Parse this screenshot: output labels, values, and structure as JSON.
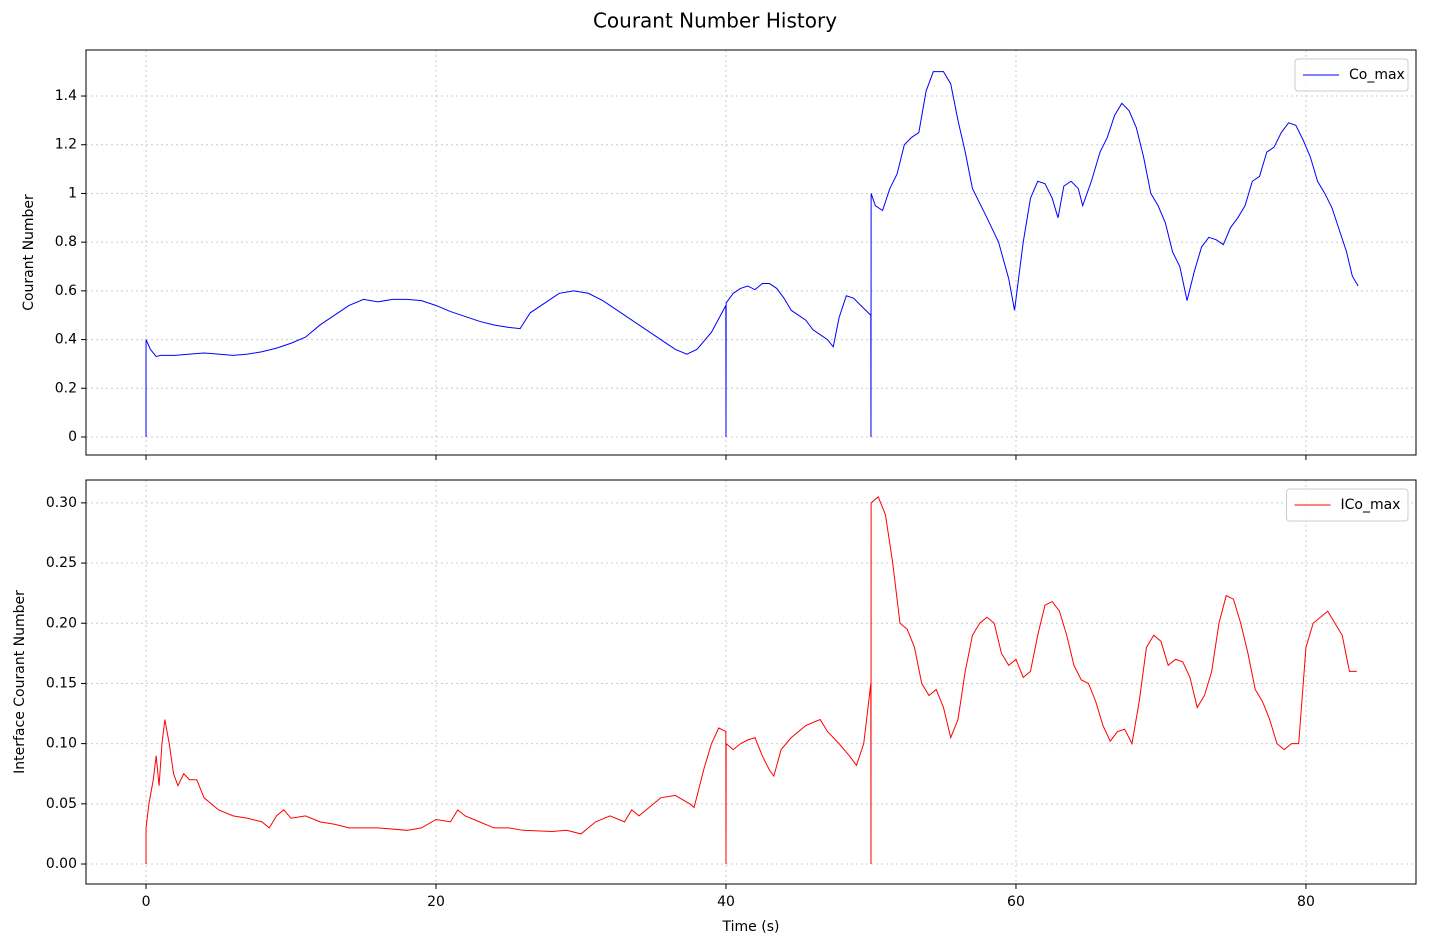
{
  "title": "Courant Number History",
  "chart_data": [
    {
      "type": "line",
      "ylabel": "Courant Number",
      "grid": true,
      "legend": "upper right",
      "xlim": [
        -4.14,
        87.59
      ],
      "xticks": [
        0,
        20,
        40,
        60,
        80
      ],
      "ylim": [
        -0.074,
        1.589
      ],
      "yticks": [
        0.0,
        0.2,
        0.4,
        0.6,
        0.8,
        1.0,
        1.2,
        1.4
      ],
      "x": [
        0,
        0,
        0.3,
        0.7,
        1,
        2,
        3,
        4,
        5,
        6,
        7,
        8,
        9,
        10,
        11,
        12,
        13,
        14,
        15,
        16,
        17,
        18,
        19,
        20,
        21,
        22,
        23,
        24,
        25,
        25.8,
        26.5,
        27.5,
        28.5,
        29.5,
        30.5,
        31.5,
        32.5,
        33.5,
        34.5,
        35.5,
        36.5,
        37.3,
        38,
        39,
        39.99,
        40,
        40.01,
        40.5,
        41,
        41.5,
        42,
        42.5,
        43,
        43.5,
        44,
        44.5,
        45.5,
        46,
        46.5,
        47,
        47.4,
        47.8,
        48.3,
        48.8,
        49.3,
        49.99,
        50,
        50.01,
        50.3,
        50.8,
        51.3,
        51.8,
        52.3,
        52.8,
        53.3,
        53.8,
        54.3,
        55,
        55.5,
        56,
        56.5,
        57,
        58,
        58.8,
        59.5,
        59.9,
        60.5,
        61,
        61.5,
        62,
        62.5,
        62.9,
        63.3,
        63.8,
        64.3,
        64.6,
        65.2,
        65.8,
        66.3,
        66.8,
        67.3,
        67.8,
        68.3,
        68.8,
        69.3,
        69.8,
        70.3,
        70.8,
        71.3,
        71.8,
        72.3,
        72.8,
        73.3,
        73.8,
        74.3,
        74.8,
        75.3,
        75.8,
        76.3,
        76.8,
        77.3,
        77.8,
        78.3,
        78.8,
        79.3,
        79.8,
        80.3,
        80.8,
        81.3,
        81.8,
        82.3,
        82.8,
        83.2,
        83.6
      ],
      "series": [
        {
          "name": "Co_max",
          "color": "#0000ff",
          "values": [
            0,
            0.4,
            0.36,
            0.33,
            0.335,
            0.335,
            0.34,
            0.345,
            0.34,
            0.335,
            0.34,
            0.35,
            0.365,
            0.385,
            0.41,
            0.46,
            0.5,
            0.54,
            0.565,
            0.555,
            0.565,
            0.565,
            0.56,
            0.54,
            0.515,
            0.495,
            0.475,
            0.46,
            0.45,
            0.445,
            0.51,
            0.55,
            0.59,
            0.6,
            0.59,
            0.56,
            0.52,
            0.48,
            0.44,
            0.4,
            0.36,
            0.34,
            0.36,
            0.43,
            0.54,
            0.0,
            0.55,
            0.59,
            0.61,
            0.62,
            0.605,
            0.63,
            0.63,
            0.61,
            0.57,
            0.52,
            0.48,
            0.44,
            0.42,
            0.4,
            0.37,
            0.49,
            0.58,
            0.57,
            0.54,
            0.5,
            0.0,
            1.0,
            0.95,
            0.93,
            1.02,
            1.08,
            1.2,
            1.23,
            1.25,
            1.42,
            1.5,
            1.5,
            1.45,
            1.3,
            1.17,
            1.02,
            0.9,
            0.8,
            0.65,
            0.52,
            0.8,
            0.98,
            1.05,
            1.04,
            0.98,
            0.9,
            1.03,
            1.05,
            1.02,
            0.95,
            1.05,
            1.17,
            1.23,
            1.32,
            1.37,
            1.34,
            1.27,
            1.15,
            1.0,
            0.95,
            0.88,
            0.76,
            0.7,
            0.56,
            0.68,
            0.78,
            0.82,
            0.81,
            0.79,
            0.86,
            0.9,
            0.95,
            1.05,
            1.07,
            1.17,
            1.19,
            1.25,
            1.29,
            1.28,
            1.22,
            1.15,
            1.05,
            1.0,
            0.94,
            0.85,
            0.76,
            0.66,
            0.62
          ]
        }
      ]
    },
    {
      "type": "line",
      "xlabel": "Time (s)",
      "ylabel": "Interface Courant Number",
      "grid": true,
      "legend": "upper right",
      "xlim": [
        -4.14,
        87.59
      ],
      "xticks": [
        0,
        20,
        40,
        60,
        80
      ],
      "ylim": [
        -0.0166,
        0.319
      ],
      "yticks": [
        {
          "value": 0,
          "label": "0.00"
        },
        0.05,
        {
          "value": 0.1,
          "label": "0.10"
        },
        0.15,
        {
          "value": 0.2,
          "label": "0.20"
        },
        0.25,
        {
          "value": 0.3,
          "label": "0.30"
        }
      ],
      "x": [
        0,
        0,
        0.2,
        0.5,
        0.7,
        0.9,
        1.1,
        1.3,
        1.6,
        1.9,
        2.2,
        2.6,
        3,
        3.5,
        4,
        5,
        6,
        7,
        8,
        8.5,
        9,
        9.5,
        10,
        11,
        12,
        13,
        14,
        16,
        18,
        19,
        20,
        21,
        21.5,
        22,
        23,
        24,
        25,
        26,
        28,
        29,
        30,
        31,
        32,
        33,
        33.5,
        34,
        34.5,
        35.5,
        36.5,
        37.5,
        37.8,
        38.5,
        39,
        39.5,
        39.99,
        40,
        40.01,
        40.5,
        41,
        41.5,
        42,
        42.5,
        43,
        43.3,
        43.8,
        44.5,
        45.5,
        46.5,
        47,
        47.8,
        48.5,
        49,
        49.5,
        49.99,
        50,
        50.01,
        50.5,
        51,
        51.5,
        52,
        52.5,
        53,
        53.5,
        54,
        54.5,
        55,
        55.5,
        56,
        56.5,
        57,
        57.5,
        58,
        58.5,
        59,
        59.5,
        60,
        60.5,
        61,
        61.5,
        62,
        62.5,
        63,
        63.5,
        64,
        64.5,
        65,
        65.5,
        66,
        66.5,
        67,
        67.5,
        68,
        68.5,
        69,
        69.5,
        70,
        70.5,
        71,
        71.5,
        72,
        72.5,
        73,
        73.5,
        74,
        74.5,
        75,
        75.5,
        76,
        76.5,
        77,
        77.5,
        78,
        78.5,
        79,
        79.5,
        80,
        80.5,
        81,
        81.5,
        82,
        82.5,
        83,
        83.5
      ],
      "series": [
        {
          "name": "ICo_max",
          "color": "#ff0000",
          "values": [
            0,
            0.03,
            0.05,
            0.07,
            0.09,
            0.065,
            0.1,
            0.12,
            0.1,
            0.075,
            0.065,
            0.075,
            0.07,
            0.07,
            0.055,
            0.045,
            0.04,
            0.038,
            0.035,
            0.03,
            0.04,
            0.045,
            0.038,
            0.04,
            0.035,
            0.033,
            0.03,
            0.03,
            0.028,
            0.03,
            0.037,
            0.035,
            0.045,
            0.04,
            0.035,
            0.03,
            0.03,
            0.028,
            0.027,
            0.028,
            0.025,
            0.035,
            0.04,
            0.035,
            0.045,
            0.04,
            0.045,
            0.055,
            0.057,
            0.05,
            0.047,
            0.08,
            0.1,
            0.113,
            0.11,
            0,
            0.1,
            0.095,
            0.1,
            0.103,
            0.105,
            0.09,
            0.078,
            0.073,
            0.095,
            0.105,
            0.115,
            0.12,
            0.11,
            0.1,
            0.09,
            0.082,
            0.1,
            0.15,
            0,
            0.3,
            0.305,
            0.29,
            0.25,
            0.2,
            0.195,
            0.18,
            0.15,
            0.14,
            0.145,
            0.13,
            0.105,
            0.12,
            0.16,
            0.19,
            0.2,
            0.205,
            0.2,
            0.175,
            0.165,
            0.17,
            0.155,
            0.16,
            0.19,
            0.215,
            0.218,
            0.21,
            0.19,
            0.165,
            0.153,
            0.15,
            0.135,
            0.115,
            0.102,
            0.11,
            0.112,
            0.1,
            0.135,
            0.18,
            0.19,
            0.185,
            0.165,
            0.17,
            0.168,
            0.155,
            0.13,
            0.14,
            0.16,
            0.2,
            0.223,
            0.22,
            0.2,
            0.175,
            0.145,
            0.135,
            0.12,
            0.1,
            0.095,
            0.1,
            0.1,
            0.18,
            0.2,
            0.205,
            0.21,
            0.2,
            0.19,
            0.16,
            0.16
          ]
        }
      ]
    }
  ]
}
